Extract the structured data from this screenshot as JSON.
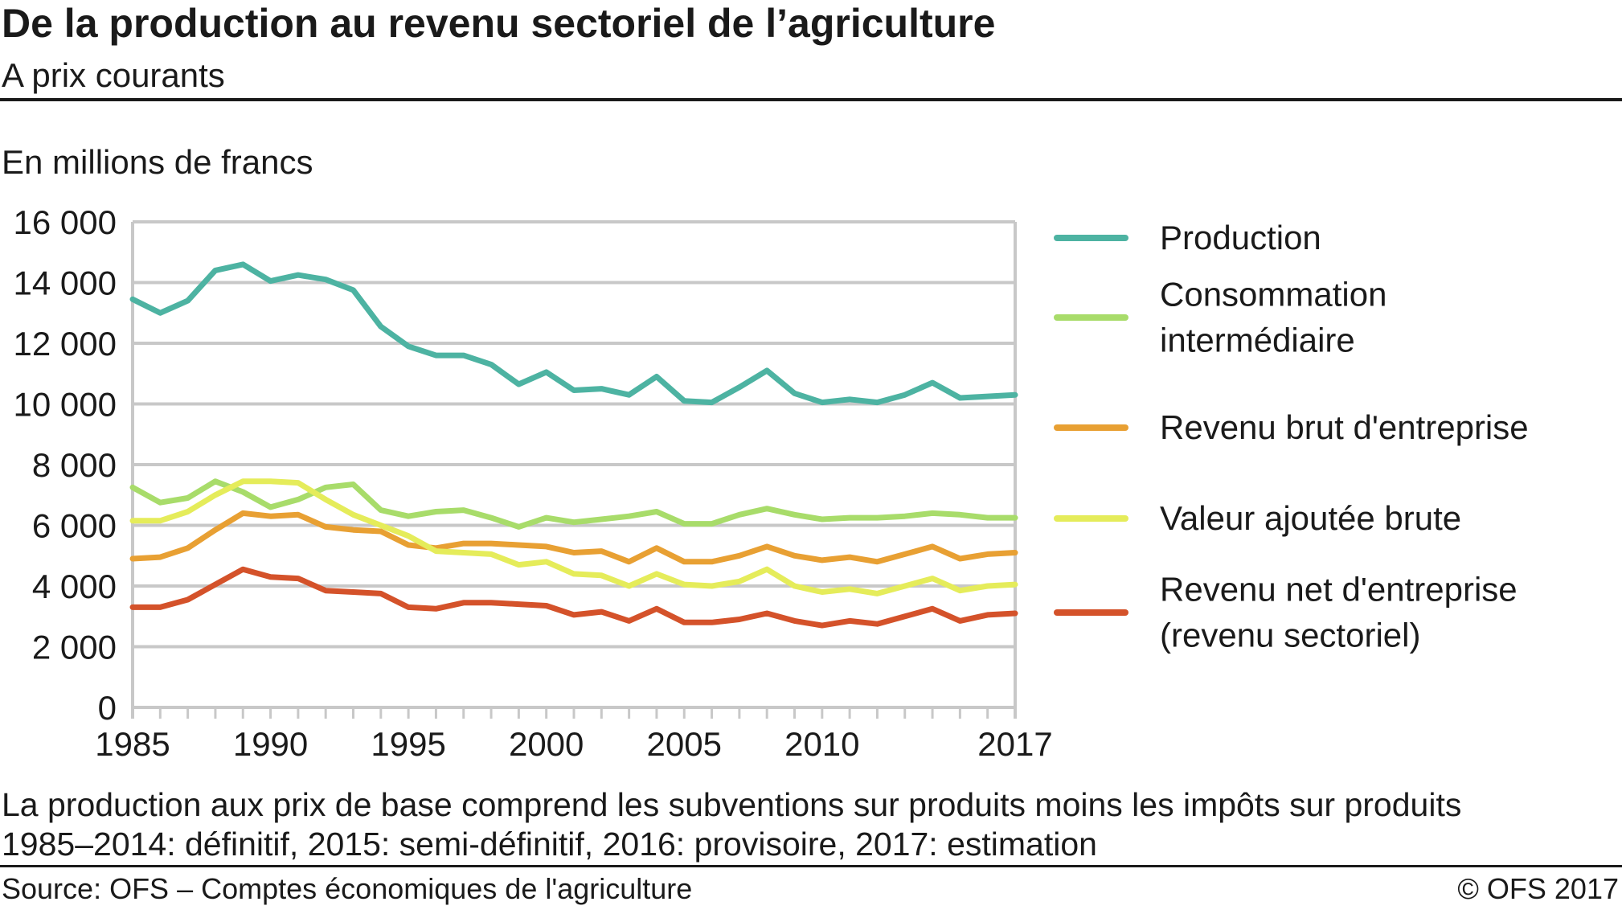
{
  "header": {
    "title": "De la production au revenu sectoriel de l’agriculture",
    "subtitle": "A prix courants",
    "unit_label": "En millions de francs"
  },
  "notes": {
    "line1": "La production aux prix de base comprend les subventions sur produits moins les impôts sur produits",
    "line2": "1985–2014: définitif, 2015: semi-définitif, 2016: provisoire, 2017: estimation"
  },
  "footer": {
    "source": "Source: OFS – Comptes économiques de l'agriculture",
    "copyright": "© OFS  2017"
  },
  "chart_data": {
    "type": "line",
    "title": "De la production au revenu sectoriel de l’agriculture",
    "subtitle": "A prix courants",
    "ylabel": "En millions de francs",
    "xlabel": "",
    "ylim": [
      0,
      16000
    ],
    "xlim": [
      1985,
      2017
    ],
    "y_ticks": [
      0,
      2000,
      4000,
      6000,
      8000,
      10000,
      12000,
      14000,
      16000
    ],
    "y_tick_labels": [
      "0",
      "2 000",
      "4 000",
      "6 000",
      "8 000",
      "10 000",
      "12 000",
      "14 000",
      "16 000"
    ],
    "x_tick_labels": [
      "1985",
      "1990",
      "1995",
      "2000",
      "2005",
      "2010",
      "2017"
    ],
    "x_tick_label_years": [
      1985,
      1990,
      1995,
      2000,
      2005,
      2010,
      2017
    ],
    "grid": "horizontal",
    "legend_position": "right",
    "x": [
      1985,
      1986,
      1987,
      1988,
      1989,
      1990,
      1991,
      1992,
      1993,
      1994,
      1995,
      1996,
      1997,
      1998,
      1999,
      2000,
      2001,
      2002,
      2003,
      2004,
      2005,
      2006,
      2007,
      2008,
      2009,
      2010,
      2011,
      2012,
      2013,
      2014,
      2015,
      2016,
      2017
    ],
    "series": [
      {
        "name": "Production",
        "color": "#4db3a2",
        "values": [
          13450,
          13000,
          13400,
          14400,
          14600,
          14050,
          14250,
          14100,
          13750,
          12550,
          11900,
          11600,
          11600,
          11300,
          10650,
          11050,
          10450,
          10500,
          10300,
          10900,
          10100,
          10050,
          10550,
          11100,
          10350,
          10050,
          10150,
          10050,
          10300,
          10700,
          10200,
          10250,
          10300
        ]
      },
      {
        "name": "Consommation intermédiaire",
        "color": "#a8dc6a",
        "values": [
          7250,
          6750,
          6900,
          7450,
          7100,
          6600,
          6850,
          7250,
          7350,
          6500,
          6300,
          6450,
          6500,
          6250,
          5950,
          6250,
          6100,
          6200,
          6300,
          6450,
          6050,
          6050,
          6350,
          6550,
          6350,
          6200,
          6250,
          6250,
          6300,
          6400,
          6350,
          6250,
          6250
        ]
      },
      {
        "name": "Revenu brut d'entreprise",
        "color": "#e8a033",
        "values": [
          4900,
          4950,
          5250,
          5850,
          6400,
          6300,
          6350,
          5950,
          5850,
          5800,
          5350,
          5250,
          5400,
          5400,
          5350,
          5300,
          5100,
          5150,
          4800,
          5250,
          4800,
          4800,
          5000,
          5300,
          5000,
          4850,
          4950,
          4800,
          5050,
          5300,
          4900,
          5050,
          5100
        ]
      },
      {
        "name": "Valeur ajoutée brute",
        "color": "#e5ec5a",
        "values": [
          6150,
          6150,
          6450,
          7000,
          7450,
          7450,
          7400,
          6850,
          6350,
          6000,
          5650,
          5150,
          5100,
          5050,
          4700,
          4800,
          4400,
          4350,
          4000,
          4400,
          4050,
          4000,
          4150,
          4550,
          4000,
          3800,
          3900,
          3750,
          4000,
          4250,
          3850,
          4000,
          4050
        ]
      },
      {
        "name": "Revenu net d'entreprise (revenu sectoriel)",
        "color": "#d4522a",
        "values": [
          3300,
          3300,
          3550,
          4050,
          4550,
          4300,
          4250,
          3850,
          3800,
          3750,
          3300,
          3250,
          3450,
          3450,
          3400,
          3350,
          3050,
          3150,
          2850,
          3250,
          2800,
          2800,
          2900,
          3100,
          2850,
          2700,
          2850,
          2750,
          3000,
          3250,
          2850,
          3050,
          3100
        ]
      }
    ],
    "legend": [
      {
        "lines": [
          "Production"
        ]
      },
      {
        "lines": [
          "Consommation",
          "intermédiaire"
        ]
      },
      {
        "lines": [
          "Revenu brut d'entreprise"
        ]
      },
      {
        "lines": [
          "Valeur ajoutée brute"
        ]
      },
      {
        "lines": [
          "Revenu net d'entreprise",
          "(revenu sectoriel)"
        ]
      }
    ]
  }
}
